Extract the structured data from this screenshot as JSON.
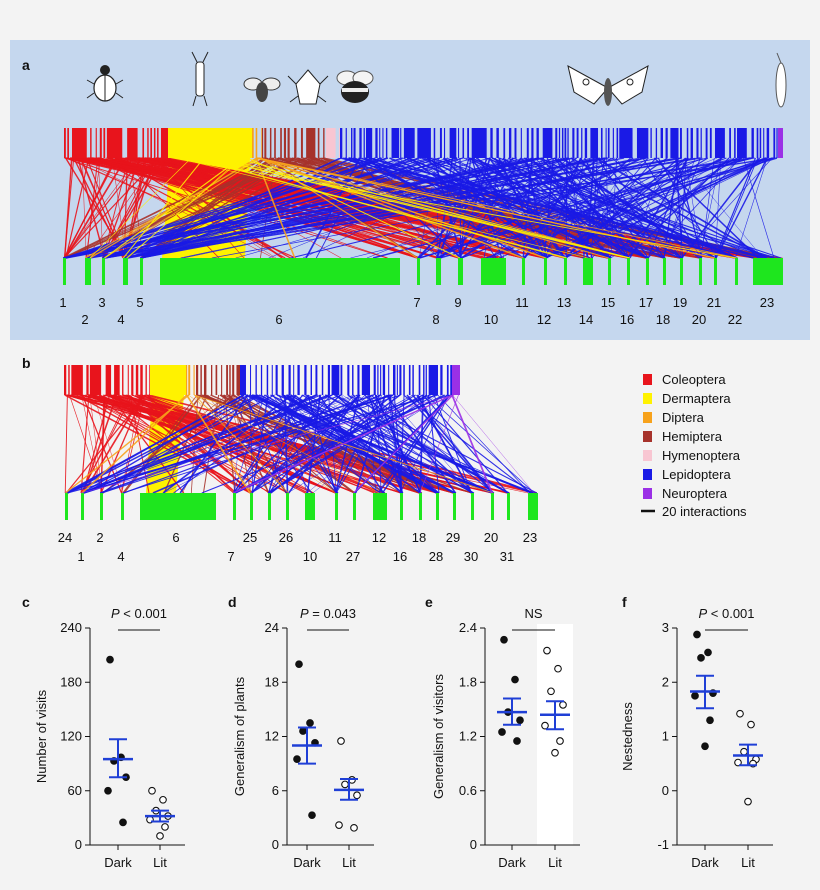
{
  "panel_labels": {
    "a": "a",
    "b": "b",
    "c": "c",
    "d": "d",
    "e": "e",
    "f": "f"
  },
  "network_a": {
    "plant_labels_upper": [
      "1",
      "3",
      "5",
      "7",
      "9",
      "11",
      "13",
      "15",
      "17",
      "19",
      "21",
      "23"
    ],
    "plant_labels_lower": [
      "2",
      "4",
      "6",
      "8",
      "10",
      "12",
      "14",
      "16",
      "18",
      "20",
      "22"
    ]
  },
  "network_b": {
    "plant_labels_upper": [
      "24",
      "2",
      "6",
      "25",
      "26",
      "11",
      "12",
      "18",
      "29",
      "20",
      "23"
    ],
    "plant_labels_lower": [
      "1",
      "4",
      "7",
      "9",
      "10",
      "27",
      "16",
      "28",
      "30",
      "31"
    ]
  },
  "legend": {
    "items": [
      {
        "label": "Coleoptera",
        "color": "#e8141c"
      },
      {
        "label": "Dermaptera",
        "color": "#fff200"
      },
      {
        "label": "Diptera",
        "color": "#f7a21b"
      },
      {
        "label": "Hemiptera",
        "color": "#a6322b"
      },
      {
        "label": "Hymenoptera",
        "color": "#f8c6d2"
      },
      {
        "label": "Lepidoptera",
        "color": "#1a1ae6"
      },
      {
        "label": "Neuroptera",
        "color": "#9b30e6"
      }
    ],
    "scale_label": "20 interactions"
  },
  "colors": {
    "plant": "#1ee61e",
    "stat": "#1f3fd6",
    "panel_bg": "#c5d7ee"
  },
  "chart_data": [
    {
      "panel": "c",
      "type": "scatter",
      "title": "",
      "xlabel": "",
      "ylabel": "Number of visits",
      "categories": [
        "Dark",
        "Lit"
      ],
      "ylim": [
        0,
        240
      ],
      "yticks": [
        0,
        60,
        120,
        180,
        240
      ],
      "significance": "P < 0.001",
      "series": [
        {
          "name": "Dark",
          "filled": true,
          "values": [
            205,
            97,
            93,
            75,
            60,
            25
          ],
          "mean": 95,
          "sem_low": 75,
          "sem_high": 117
        },
        {
          "name": "Lit",
          "filled": false,
          "values": [
            60,
            50,
            38,
            32,
            28,
            20,
            10
          ],
          "mean": 32,
          "sem_low": 26,
          "sem_high": 38
        }
      ]
    },
    {
      "panel": "d",
      "type": "scatter",
      "title": "",
      "xlabel": "",
      "ylabel": "Generalism of plants",
      "categories": [
        "Dark",
        "Lit"
      ],
      "ylim": [
        0,
        24
      ],
      "yticks": [
        0,
        6,
        12,
        18,
        24
      ],
      "significance": "P = 0.043",
      "series": [
        {
          "name": "Dark",
          "filled": true,
          "values": [
            20,
            13.5,
            12.6,
            11.3,
            9.5,
            3.3
          ],
          "mean": 11,
          "sem_low": 9,
          "sem_high": 13
        },
        {
          "name": "Lit",
          "filled": false,
          "values": [
            11.5,
            7.2,
            6.7,
            5.5,
            2.2,
            1.9
          ],
          "mean": 6.1,
          "sem_low": 5,
          "sem_high": 7.3
        }
      ]
    },
    {
      "panel": "e",
      "type": "scatter",
      "title": "",
      "xlabel": "",
      "ylabel": "Generalism of visitors",
      "categories": [
        "Dark",
        "Lit"
      ],
      "ylim": [
        0,
        2.4
      ],
      "yticks": [
        0,
        0.6,
        1.2,
        1.8,
        2.4
      ],
      "significance": "NS",
      "series": [
        {
          "name": "Dark",
          "filled": true,
          "values": [
            2.27,
            1.83,
            1.47,
            1.38,
            1.25,
            1.15
          ],
          "mean": 1.47,
          "sem_low": 1.33,
          "sem_high": 1.62
        },
        {
          "name": "Lit",
          "filled": false,
          "values": [
            2.15,
            1.95,
            1.7,
            1.55,
            1.32,
            1.15,
            1.02
          ],
          "mean": 1.44,
          "sem_low": 1.28,
          "sem_high": 1.59
        }
      ]
    },
    {
      "panel": "f",
      "type": "scatter",
      "title": "",
      "xlabel": "",
      "ylabel": "Nestedness",
      "categories": [
        "Dark",
        "Lit"
      ],
      "ylim": [
        -1,
        3
      ],
      "yticks": [
        -1,
        0,
        1,
        2,
        3
      ],
      "significance": "P < 0.001",
      "series": [
        {
          "name": "Dark",
          "filled": true,
          "values": [
            2.88,
            2.55,
            2.45,
            1.8,
            1.75,
            1.3,
            0.82
          ],
          "mean": 1.83,
          "sem_low": 1.52,
          "sem_high": 2.12
        },
        {
          "name": "Lit",
          "filled": false,
          "values": [
            1.42,
            1.22,
            0.72,
            0.58,
            0.52,
            0.5,
            -0.2
          ],
          "mean": 0.65,
          "sem_low": 0.47,
          "sem_high": 0.85
        }
      ]
    }
  ]
}
